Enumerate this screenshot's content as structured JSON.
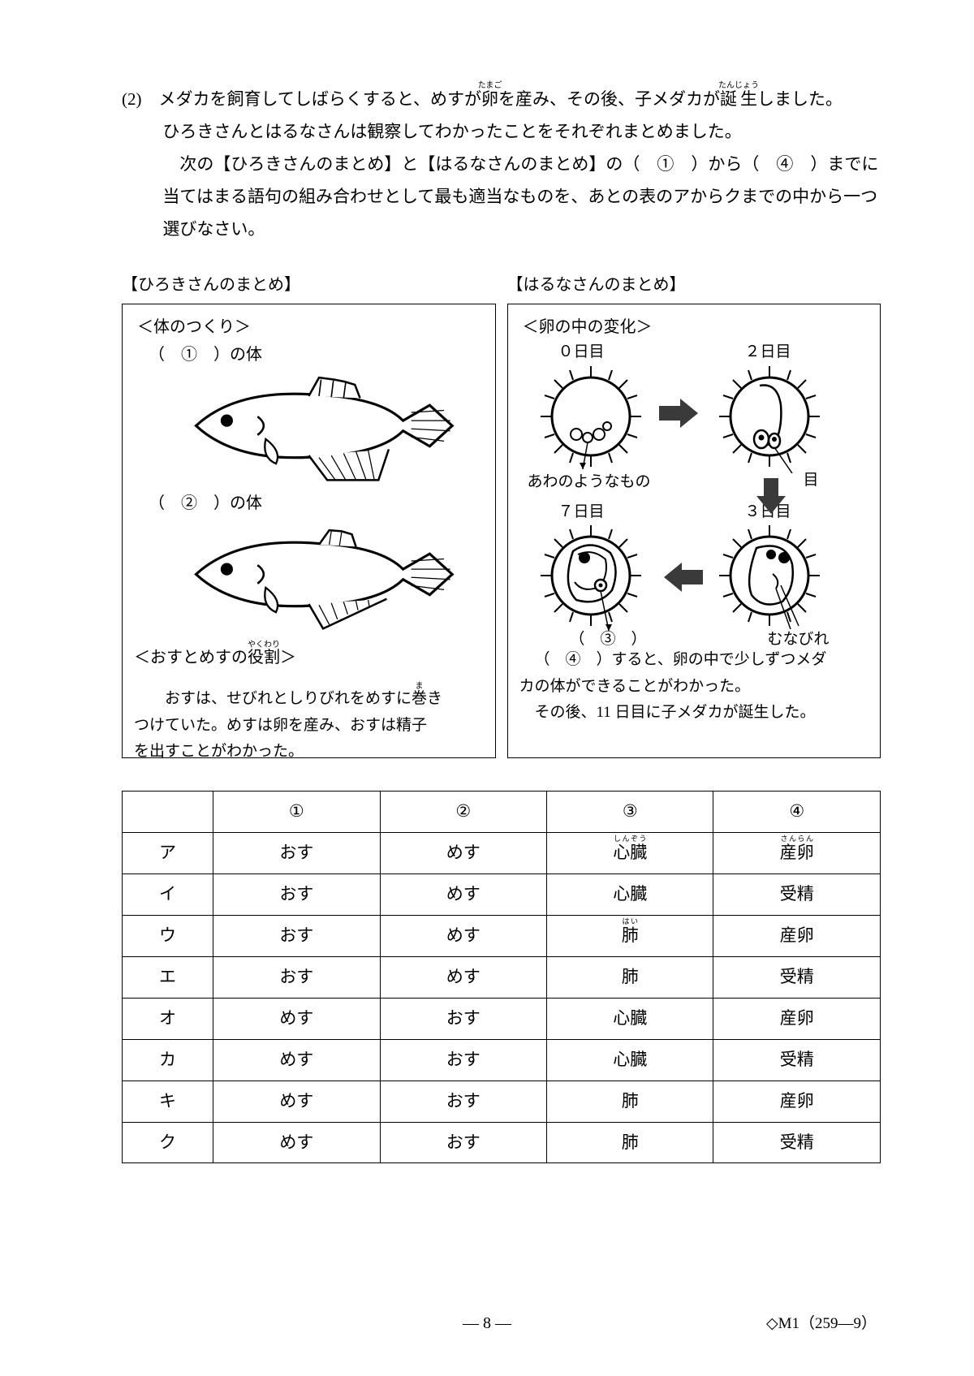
{
  "question": {
    "number": "(2)",
    "para1_a": "メダカを飼育してしばらくすると、めすが",
    "ruby1": "卵",
    "ruby1_rt": "たまご",
    "para1_b": "を産み、その後、子メダカが",
    "ruby2": "誕生",
    "ruby2_rt": "たんじょう",
    "para1_c": "しました。",
    "para2": "ひろきさんとはるなさんは観察してわかったことをそれぞれまとめました。",
    "para3": "次の【ひろきさんのまとめ】と【はるなさんのまとめ】の（　①　）から（　④　）までに",
    "para4": "当てはまる語句の組み合わせとして最も適当なものを、あとの表のアからクまでの中から一つ",
    "para5": "選びなさい。"
  },
  "left_panel": {
    "title": "【ひろきさんのまとめ】",
    "heading1": "＜体のつくり＞",
    "blank1": "（　①　）の体",
    "blank2": "（　②　）の体",
    "heading2_a": "＜おすとめすの",
    "heading2_ruby": "役割",
    "heading2_rt": "やくわり",
    "heading2_b": "＞",
    "role_a": "おすは、せびれとしりびれをめすに",
    "role_ruby": "巻",
    "role_rt": "ま",
    "role_b": "き",
    "role2": "つけていた。めすは卵を産み、おすは精子",
    "role3": "を出すことがわかった。"
  },
  "right_panel": {
    "title": "【はるなさんのまとめ】",
    "heading": "＜卵の中の変化＞",
    "day0": "０日目",
    "day2": "２日目",
    "day3": "３日目",
    "day7": "７日目",
    "bubble_label": "あわのようなもの",
    "eye_label": "目",
    "blank3": "（　③　）",
    "fin_label": "むなびれ",
    "note1": "（　④　）すると、卵の中で少しずつメダ",
    "note2": "カの体ができることがわかった。",
    "note3": "その後、11 日目に子メダカが誕生した。"
  },
  "table": {
    "headers": [
      "",
      "①",
      "②",
      "③",
      "④"
    ],
    "rows": [
      {
        "k": "ア",
        "c1": "おす",
        "c2": "めす",
        "c3_ruby": "心臓",
        "c3_rt": "しんぞう",
        "c4_ruby": "産卵",
        "c4_rt": "さんらん"
      },
      {
        "k": "イ",
        "c1": "おす",
        "c2": "めす",
        "c3": "心臓",
        "c4": "受精"
      },
      {
        "k": "ウ",
        "c1": "おす",
        "c2": "めす",
        "c3_ruby": "肺",
        "c3_rt": "はい",
        "c4": "産卵"
      },
      {
        "k": "エ",
        "c1": "おす",
        "c2": "めす",
        "c3": "肺",
        "c4": "受精"
      },
      {
        "k": "オ",
        "c1": "めす",
        "c2": "おす",
        "c3": "心臓",
        "c4": "産卵"
      },
      {
        "k": "カ",
        "c1": "めす",
        "c2": "おす",
        "c3": "心臓",
        "c4": "受精"
      },
      {
        "k": "キ",
        "c1": "めす",
        "c2": "おす",
        "c3": "肺",
        "c4": "産卵"
      },
      {
        "k": "ク",
        "c1": "めす",
        "c2": "おす",
        "c3": "肺",
        "c4": "受精"
      }
    ]
  },
  "footer": {
    "page": "— 8 —",
    "code": "◇M1（259―9）"
  },
  "style": {
    "egg_size": 120,
    "arrow_fill": "#3a3a3a"
  }
}
